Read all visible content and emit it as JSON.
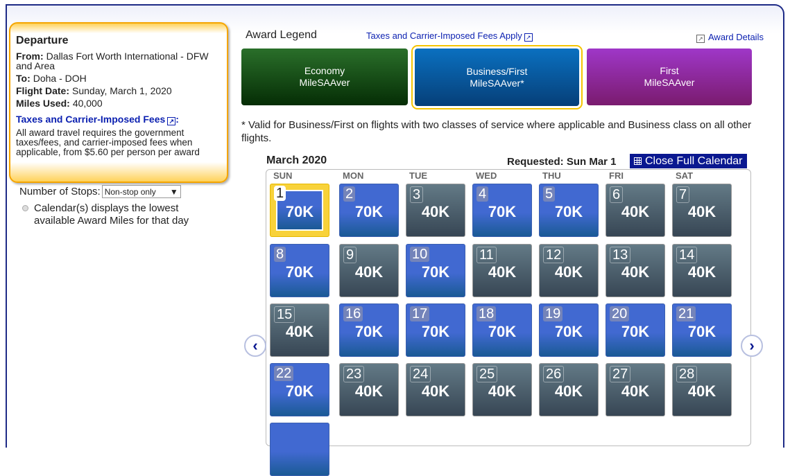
{
  "departure": {
    "title": "Departure",
    "from_label": "From:",
    "from": "Dallas Fort Worth International - DFW and Area",
    "to_label": "To:",
    "to": "Doha - DOH",
    "date_label": "Flight Date:",
    "date": "Sunday, March 1, 2020",
    "miles_label": "Miles Used:",
    "miles": "40,000",
    "fees_link": "Taxes and Carrier-Imposed Fees",
    "fees_note": "All award travel requires the government taxes/fees, and carrier-imposed fees when applicable, from $5.60 per person per award"
  },
  "filters": {
    "stops_label": "Number of Stops:",
    "stops_value": "Non-stop only",
    "calendar_note": "Calendar(s) displays the lowest available Award Miles for that day"
  },
  "legend": {
    "title": "Award Legend",
    "fees_link": "Taxes and Carrier-Imposed Fees Apply",
    "details_link": "Award Details",
    "items": [
      {
        "line1": "Economy",
        "line2": "MileSAAver",
        "color": "#1f5f1f"
      },
      {
        "line1": "Business/First",
        "line2": "MileSAAver*",
        "color": "#0a5fa8",
        "selected": true
      },
      {
        "line1": "First",
        "line2": "MileSAAver",
        "color": "#8e2aa8"
      }
    ],
    "footnote": "* Valid for Business/First on flights with two classes of service where applicable and Business class on all other flights."
  },
  "calendar": {
    "month": "March 2020",
    "requested": "Requested: Sun Mar 1",
    "close_label": "Close Full Calendar",
    "weekdays": [
      "SUN",
      "MON",
      "TUE",
      "WED",
      "THU",
      "FRI",
      "SAT"
    ],
    "days": [
      {
        "d": "1",
        "m": "70K",
        "t": "blue",
        "selected": true
      },
      {
        "d": "2",
        "m": "70K",
        "t": "blue"
      },
      {
        "d": "3",
        "m": "40K",
        "t": "gray"
      },
      {
        "d": "4",
        "m": "70K",
        "t": "blue"
      },
      {
        "d": "5",
        "m": "70K",
        "t": "blue"
      },
      {
        "d": "6",
        "m": "40K",
        "t": "gray"
      },
      {
        "d": "7",
        "m": "40K",
        "t": "gray"
      },
      {
        "d": "8",
        "m": "70K",
        "t": "blue"
      },
      {
        "d": "9",
        "m": "40K",
        "t": "gray"
      },
      {
        "d": "10",
        "m": "70K",
        "t": "blue"
      },
      {
        "d": "11",
        "m": "40K",
        "t": "gray"
      },
      {
        "d": "12",
        "m": "40K",
        "t": "gray"
      },
      {
        "d": "13",
        "m": "40K",
        "t": "gray"
      },
      {
        "d": "14",
        "m": "40K",
        "t": "gray"
      },
      {
        "d": "15",
        "m": "40K",
        "t": "gray"
      },
      {
        "d": "16",
        "m": "70K",
        "t": "blue"
      },
      {
        "d": "17",
        "m": "70K",
        "t": "blue"
      },
      {
        "d": "18",
        "m": "70K",
        "t": "blue"
      },
      {
        "d": "19",
        "m": "70K",
        "t": "blue"
      },
      {
        "d": "20",
        "m": "70K",
        "t": "blue"
      },
      {
        "d": "21",
        "m": "70K",
        "t": "blue"
      },
      {
        "d": "22",
        "m": "70K",
        "t": "blue"
      },
      {
        "d": "23",
        "m": "40K",
        "t": "gray"
      },
      {
        "d": "24",
        "m": "40K",
        "t": "gray"
      },
      {
        "d": "25",
        "m": "40K",
        "t": "gray"
      },
      {
        "d": "26",
        "m": "40K",
        "t": "gray"
      },
      {
        "d": "27",
        "m": "40K",
        "t": "gray"
      },
      {
        "d": "28",
        "m": "40K",
        "t": "gray"
      }
    ],
    "prev": "‹",
    "next": "›"
  }
}
